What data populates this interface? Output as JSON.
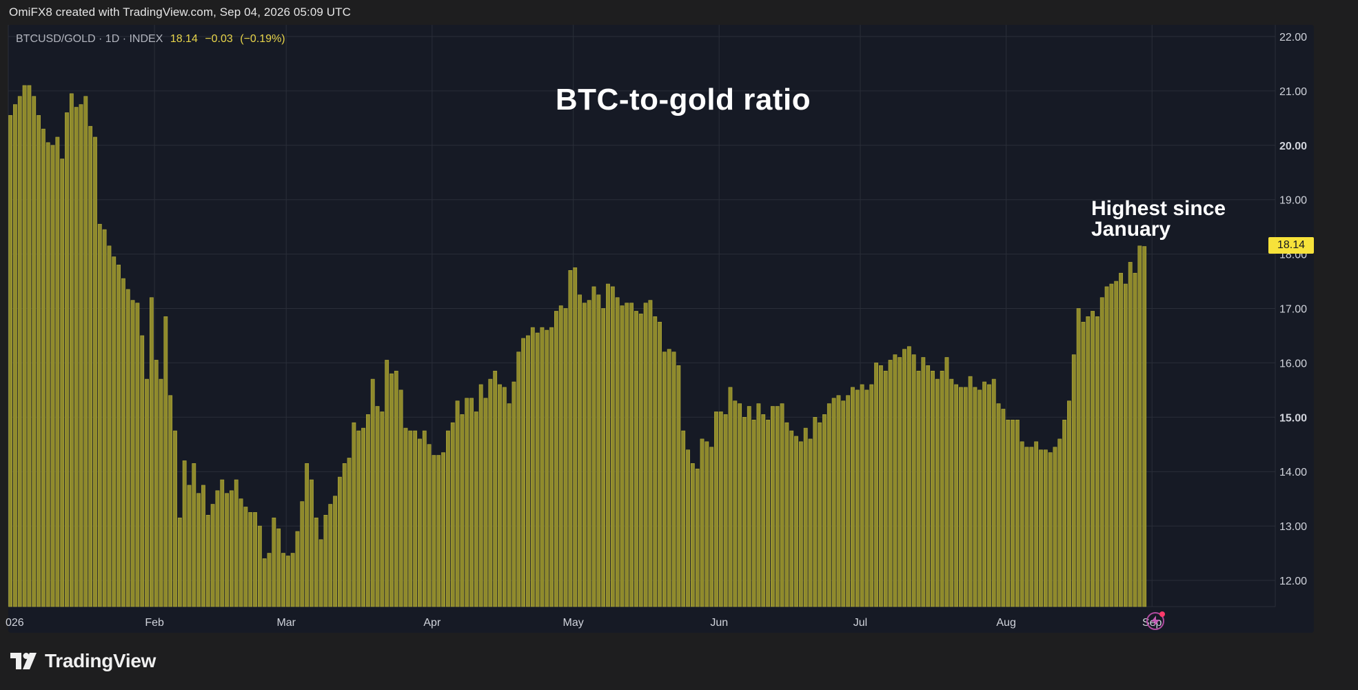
{
  "header": {
    "caption": "OmiFX8 created with TradingView.com, Sep 04, 2026 05:09 UTC"
  },
  "legend": {
    "symbol": "BTCUSD/GOLD · 1D · INDEX",
    "last": "18.14",
    "change": "−0.03",
    "change_pct": "(−0.19%)"
  },
  "price_tag": "18.14",
  "annotation": {
    "line1": "Highest since",
    "line2": "January"
  },
  "branding": {
    "logo_text": "TradingView"
  },
  "colors": {
    "bar": "#8f8a2c",
    "bar_edge": "#b5ae3d",
    "price_tag": "#f7e23a",
    "background": "#161a25"
  },
  "icons": {
    "alert": "lightning-alert-icon",
    "logo": "tradingview-logo-icon"
  },
  "chart_data": {
    "type": "bar",
    "title": "BTC-to-gold ratio",
    "xlabel": "",
    "ylabel": "",
    "ylim": [
      11.5,
      22.0
    ],
    "grid": true,
    "y_ticks": [
      "22.00",
      "21.00",
      "20.00",
      "19.00",
      "18.00",
      "17.00",
      "16.00",
      "15.00",
      "14.00",
      "13.00",
      "12.00"
    ],
    "x_ticks": [
      {
        "label": "026",
        "date": "2026-01-01"
      },
      {
        "label": "Feb",
        "date": "2026-02-01"
      },
      {
        "label": "Mar",
        "date": "2026-03-01"
      },
      {
        "label": "Apr",
        "date": "2026-04-01"
      },
      {
        "label": "May",
        "date": "2026-05-01"
      },
      {
        "label": "Jun",
        "date": "2026-06-01"
      },
      {
        "label": "Jul",
        "date": "2026-07-01"
      },
      {
        "label": "Aug",
        "date": "2026-08-01"
      },
      {
        "label": "Sep",
        "date": "2026-09-01"
      }
    ],
    "start_date": "2026-01-01",
    "values": [
      20.55,
      20.75,
      20.9,
      21.1,
      21.1,
      20.9,
      20.55,
      20.3,
      20.05,
      20.0,
      20.15,
      19.75,
      20.6,
      20.95,
      20.7,
      20.75,
      20.9,
      20.35,
      20.15,
      18.55,
      18.45,
      18.15,
      17.95,
      17.8,
      17.55,
      17.35,
      17.15,
      17.1,
      16.5,
      15.7,
      17.2,
      16.05,
      15.7,
      16.85,
      15.4,
      14.75,
      13.15,
      14.2,
      13.75,
      14.15,
      13.6,
      13.75,
      13.2,
      13.4,
      13.65,
      13.85,
      13.6,
      13.65,
      13.85,
      13.5,
      13.35,
      13.25,
      13.25,
      13.0,
      12.4,
      12.5,
      13.15,
      12.95,
      12.5,
      12.45,
      12.5,
      12.9,
      13.45,
      14.15,
      13.85,
      13.15,
      12.75,
      13.2,
      13.4,
      13.55,
      13.9,
      14.15,
      14.25,
      14.9,
      14.75,
      14.8,
      15.05,
      15.7,
      15.2,
      15.1,
      16.05,
      15.8,
      15.85,
      15.5,
      14.8,
      14.75,
      14.75,
      14.6,
      14.75,
      14.5,
      14.3,
      14.3,
      14.35,
      14.75,
      14.9,
      15.3,
      15.05,
      15.35,
      15.35,
      15.1,
      15.6,
      15.35,
      15.7,
      15.85,
      15.6,
      15.55,
      15.25,
      15.65,
      16.2,
      16.45,
      16.5,
      16.65,
      16.55,
      16.65,
      16.6,
      16.65,
      16.95,
      17.05,
      17.0,
      17.7,
      17.75,
      17.25,
      17.1,
      17.15,
      17.4,
      17.25,
      17.0,
      17.45,
      17.4,
      17.2,
      17.05,
      17.1,
      17.1,
      16.95,
      16.9,
      17.1,
      17.15,
      16.85,
      16.75,
      16.2,
      16.25,
      16.2,
      15.95,
      14.75,
      14.4,
      14.15,
      14.05,
      14.6,
      14.55,
      14.45,
      15.1,
      15.1,
      15.05,
      15.55,
      15.3,
      15.25,
      15.0,
      15.2,
      14.95,
      15.25,
      15.05,
      14.95,
      15.2,
      15.2,
      15.25,
      14.9,
      14.75,
      14.65,
      14.55,
      14.8,
      14.6,
      15.0,
      14.9,
      15.05,
      15.25,
      15.35,
      15.4,
      15.3,
      15.4,
      15.55,
      15.5,
      15.6,
      15.5,
      15.6,
      16.0,
      15.95,
      15.85,
      16.05,
      16.15,
      16.1,
      16.25,
      16.3,
      16.15,
      15.85,
      16.1,
      15.95,
      15.85,
      15.7,
      15.85,
      16.1,
      15.7,
      15.6,
      15.55,
      15.55,
      15.75,
      15.55,
      15.5,
      15.65,
      15.6,
      15.7,
      15.25,
      15.15,
      14.95,
      14.95,
      14.95,
      14.55,
      14.45,
      14.45,
      14.55,
      14.4,
      14.4,
      14.35,
      14.45,
      14.6,
      14.95,
      15.3,
      16.15,
      17.0,
      16.75,
      16.85,
      16.95,
      16.85,
      17.2,
      17.4,
      17.45,
      17.5,
      17.65,
      17.45,
      17.85,
      17.65,
      18.15,
      18.14
    ]
  }
}
